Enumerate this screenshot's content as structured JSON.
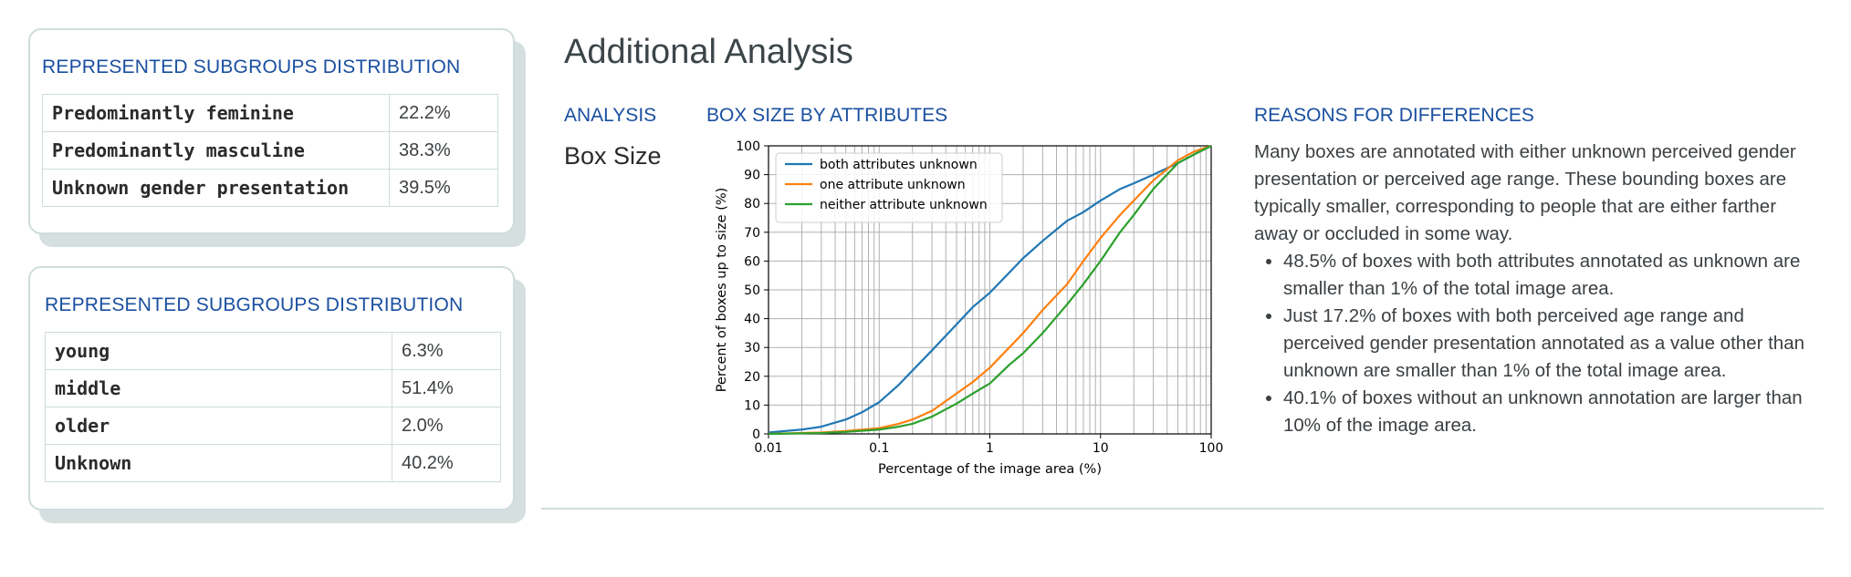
{
  "gender_card": {
    "title": "REPRESENTED SUBGROUPS DISTRIBUTION",
    "rows": [
      {
        "label": "Predominantly feminine",
        "value": "22.2%"
      },
      {
        "label": "Predominantly masculine",
        "value": "38.3%"
      },
      {
        "label": "Unknown gender presentation",
        "value": "39.5%"
      }
    ]
  },
  "age_card": {
    "title": "REPRESENTED SUBGROUPS DISTRIBUTION",
    "rows": [
      {
        "label": "young",
        "value": "6.3%"
      },
      {
        "label": "middle",
        "value": "51.4%"
      },
      {
        "label": "older",
        "value": "2.0%"
      },
      {
        "label": "Unknown",
        "value": "40.2%"
      }
    ]
  },
  "main": {
    "title": "Additional Analysis",
    "analysis_head": "ANALYSIS",
    "analysis_value": "Box Size",
    "chart_head": "BOX SIZE BY ATTRIBUTES",
    "reasons_head": "REASONS FOR DIFFERENCES",
    "reasons_intro": "Many boxes are annotated with either unknown perceived gender presentation or perceived age range. These bounding boxes are typically smaller, corresponding to people that are either farther away or occluded in some way.",
    "reasons_bullets": [
      "48.5% of boxes with both attributes annotated as unknown are smaller than 1% of the total image area.",
      "Just 17.2% of boxes with both perceived age range and perceived gender presentation annotated as a value other than unknown are smaller than 1% of the total image area.",
      "40.1% of boxes without an unknown annotation are larger than 10% of the image area."
    ]
  },
  "colors": {
    "blue": "#1f77b4",
    "orange": "#ff7f0e",
    "green": "#2ca02c",
    "heading": "#1a4fa0"
  },
  "chart_data": {
    "type": "line",
    "xlabel": "Percentage of the image area (%)",
    "ylabel": "Percent of boxes up to size (%)",
    "xscale": "log",
    "xlim": [
      0.01,
      100
    ],
    "ylim": [
      0,
      100
    ],
    "xticks": [
      "0.01",
      "0.1",
      "1",
      "10",
      "100"
    ],
    "yticks": [
      "0",
      "10",
      "20",
      "30",
      "40",
      "50",
      "60",
      "70",
      "80",
      "90",
      "100"
    ],
    "grid": true,
    "legend_position": "top-left",
    "series": [
      {
        "name": "both attributes unknown",
        "color": "#1f77b4",
        "x": [
          0.01,
          0.02,
          0.03,
          0.05,
          0.07,
          0.1,
          0.15,
          0.2,
          0.3,
          0.5,
          0.7,
          1,
          1.5,
          2,
          3,
          5,
          7,
          10,
          15,
          20,
          30,
          50,
          70,
          100
        ],
        "y": [
          0.5,
          1.5,
          2.5,
          5,
          7.5,
          11,
          17,
          22,
          29,
          38,
          44,
          49,
          56,
          61,
          67,
          74,
          77,
          81,
          85,
          87,
          90,
          94,
          97,
          100
        ]
      },
      {
        "name": "one attribute unknown",
        "color": "#ff7f0e",
        "x": [
          0.01,
          0.03,
          0.05,
          0.1,
          0.15,
          0.2,
          0.3,
          0.5,
          0.7,
          1,
          1.5,
          2,
          3,
          5,
          7,
          10,
          15,
          20,
          30,
          50,
          70,
          100
        ],
        "y": [
          0,
          0.5,
          1,
          2,
          3.5,
          5,
          8,
          14,
          18,
          23,
          30,
          35,
          43,
          52,
          60,
          68,
          76,
          81,
          88,
          95,
          98,
          100
        ]
      },
      {
        "name": "neither attribute unknown",
        "color": "#2ca02c",
        "x": [
          0.01,
          0.03,
          0.05,
          0.1,
          0.15,
          0.2,
          0.3,
          0.5,
          0.7,
          1,
          1.5,
          2,
          3,
          5,
          7,
          10,
          15,
          20,
          30,
          50,
          70,
          100
        ],
        "y": [
          0,
          0.3,
          0.7,
          1.5,
          2.5,
          3.5,
          6,
          10.5,
          14,
          17.5,
          24,
          28,
          35,
          45,
          52,
          60,
          70,
          76,
          85,
          94,
          97,
          100
        ]
      }
    ]
  }
}
